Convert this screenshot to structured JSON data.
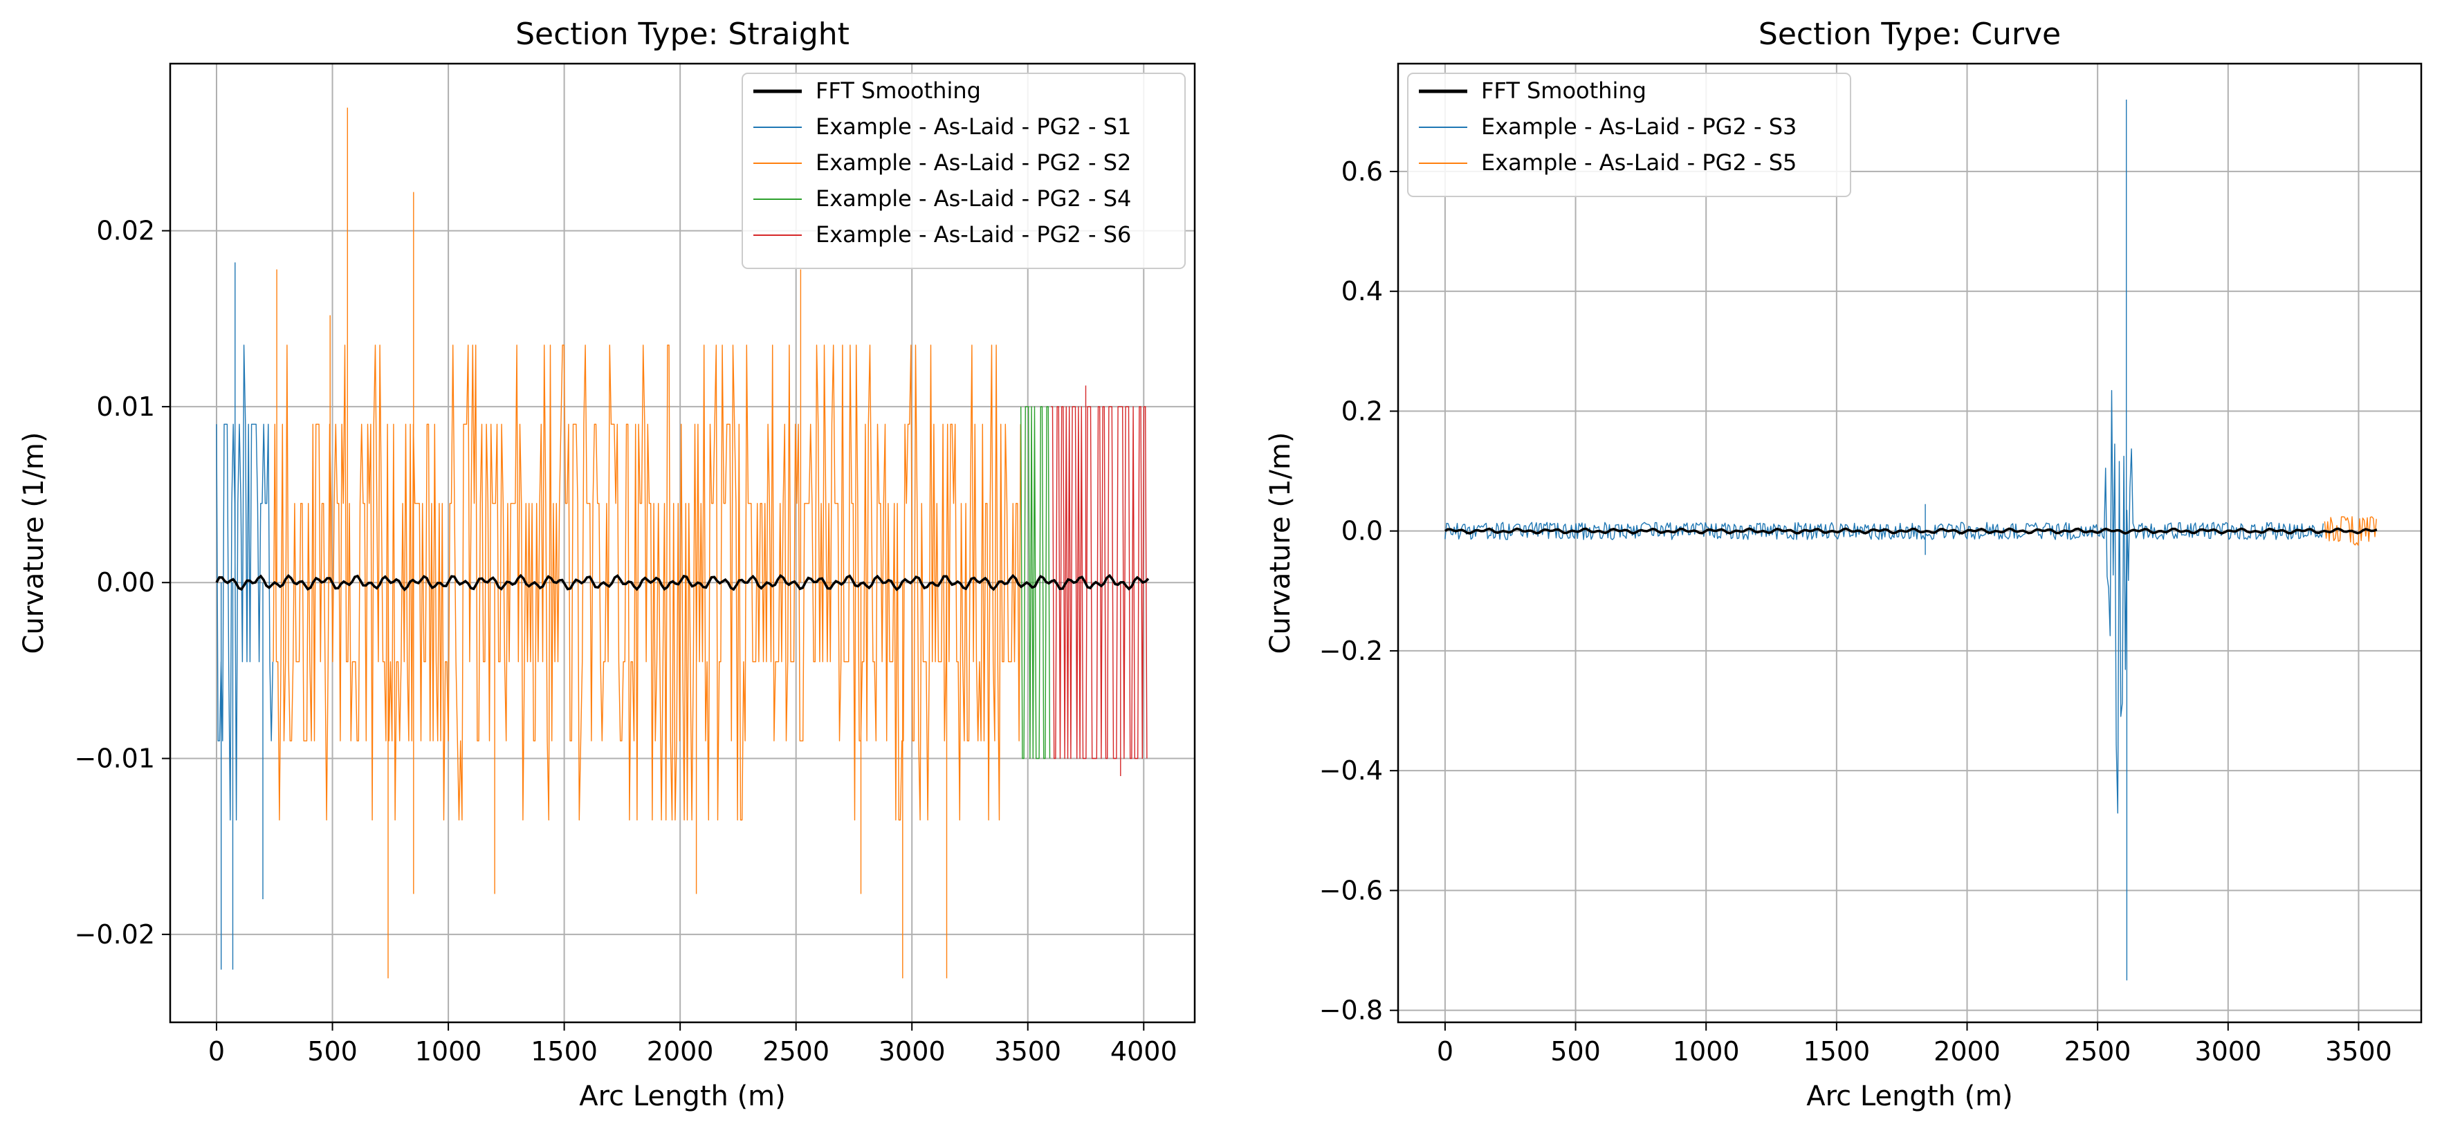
{
  "chart_data": [
    {
      "type": "line",
      "title": "Section Type: Straight",
      "xlabel": "Arc Length (m)",
      "ylabel": "Curvature (1/m)",
      "xlim": [
        -200,
        4220
      ],
      "ylim": [
        -0.025,
        0.0295
      ],
      "xticks": [
        0,
        500,
        1000,
        1500,
        2000,
        2500,
        3000,
        3500,
        4000
      ],
      "xtick_labels": [
        "0",
        "500",
        "1000",
        "1500",
        "2000",
        "2500",
        "3000",
        "3500",
        "4000"
      ],
      "yticks": [
        -0.02,
        -0.01,
        0.0,
        0.01,
        0.02
      ],
      "ytick_labels": [
        "−0.02",
        "−0.01",
        "0.00",
        "0.01",
        "0.02"
      ],
      "grid": true,
      "legend_position": "top-right",
      "series": [
        {
          "name": "FFT Smoothing",
          "color": "#000000",
          "smooth": true,
          "x": [
            0,
            4020
          ],
          "amp": 0.0004
        },
        {
          "name": "Example - As-Laid - PG2 - S1",
          "color": "#1f77b4",
          "x": [
            0,
            245
          ],
          "levels": [
            0.0045,
            0.009,
            0.0135
          ],
          "spikes": [
            [
              80,
              0.0182
            ],
            [
              20,
              -0.022
            ],
            [
              70,
              -0.022
            ],
            [
              200,
              -0.018
            ]
          ]
        },
        {
          "name": "Example - As-Laid - PG2 - S2",
          "color": "#ff7f0e",
          "x": [
            245,
            3470
          ],
          "levels": [
            0.0045,
            0.009,
            0.0135
          ],
          "spikes": [
            [
              565,
              0.027
            ],
            [
              850,
              0.0222
            ],
            [
              490,
              0.0152
            ],
            [
              2520,
              0.0178
            ],
            [
              260,
              0.0178
            ],
            [
              740,
              -0.0225
            ],
            [
              2960,
              -0.0225
            ],
            [
              3150,
              -0.0225
            ],
            [
              850,
              -0.0177
            ],
            [
              1200,
              -0.0177
            ],
            [
              2070,
              -0.0177
            ],
            [
              2780,
              -0.0177
            ]
          ]
        },
        {
          "name": "Example - As-Laid - PG2 - S4",
          "color": "#2ca02c",
          "x": [
            3470,
            3600
          ],
          "levels": [
            0.01
          ],
          "spikes": []
        },
        {
          "name": "Example - As-Laid - PG2 - S6",
          "color": "#d62728",
          "x": [
            3600,
            4020
          ],
          "levels": [
            0.01
          ],
          "spikes": [
            [
              3750,
              0.0112
            ],
            [
              3900,
              -0.011
            ]
          ]
        }
      ]
    },
    {
      "type": "line",
      "title": "Section Type: Curve",
      "xlabel": "Arc Length (m)",
      "ylabel": "Curvature (1/m)",
      "xlim": [
        -180,
        3740
      ],
      "ylim": [
        -0.82,
        0.78
      ],
      "xticks": [
        0,
        500,
        1000,
        1500,
        2000,
        2500,
        3000,
        3500
      ],
      "xtick_labels": [
        "0",
        "500",
        "1000",
        "1500",
        "2000",
        "2500",
        "3000",
        "3500"
      ],
      "yticks": [
        -0.8,
        -0.6,
        -0.4,
        -0.2,
        0.0,
        0.2,
        0.4,
        0.6
      ],
      "ytick_labels": [
        "−0.8",
        "−0.6",
        "−0.4",
        "−0.2",
        "0.0",
        "0.2",
        "0.4",
        "0.6"
      ],
      "grid": true,
      "legend_position": "top-left",
      "series": [
        {
          "name": "FFT Smoothing",
          "color": "#000000",
          "smooth": true,
          "x": [
            0,
            3570
          ],
          "amp": 0.004
        },
        {
          "name": "Example - As-Laid - PG2 - S3",
          "color": "#1f77b4",
          "x": [
            0,
            3370
          ],
          "noise": 0.012,
          "burst": [
            2530,
            2630,
            0.72,
            -0.75
          ],
          "spikes": [
            [
              1840,
              0.045
            ],
            [
              1840,
              -0.04
            ]
          ]
        },
        {
          "name": "Example - As-Laid - PG2 - S5",
          "color": "#ff7f0e",
          "x": [
            3370,
            3570
          ],
          "noise": 0.02,
          "spikes": []
        }
      ]
    }
  ]
}
